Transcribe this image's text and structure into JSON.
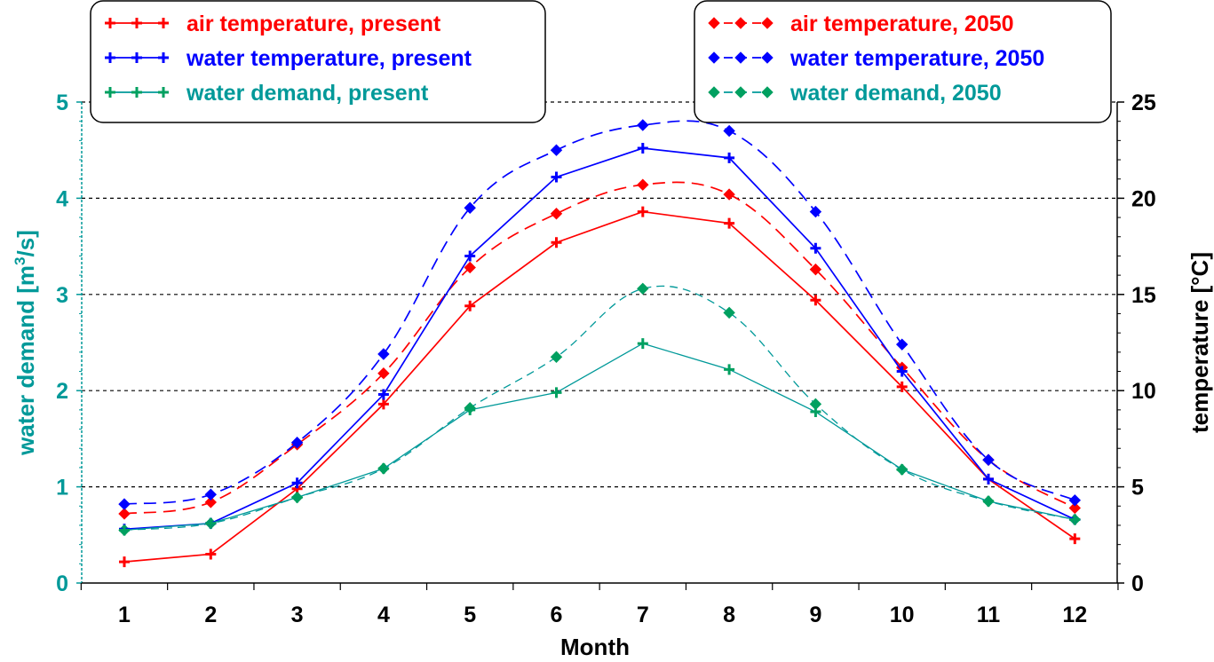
{
  "chart_data": {
    "type": "line",
    "xlabel": "Month",
    "ylabel_left": "water demand [m³/s]",
    "ylabel_left_main": "water demand [m",
    "ylabel_left_sup": "3",
    "ylabel_left_tail": "/s]",
    "ylabel_right": "temperature [°C]",
    "categories": [
      "1",
      "2",
      "3",
      "4",
      "5",
      "6",
      "7",
      "8",
      "9",
      "10",
      "11",
      "12"
    ],
    "ylim_left": [
      0,
      5
    ],
    "ylim_right": [
      0,
      25
    ],
    "yticks_left": [
      "0",
      "1",
      "2",
      "3",
      "4",
      "5"
    ],
    "yticks_right": [
      "0",
      "5",
      "10",
      "15",
      "20",
      "25"
    ],
    "grid": "horizontal dashed",
    "series": [
      {
        "name": "air temperature, present",
        "axis": "right",
        "color": "#ff0000",
        "marker": "plus",
        "style": "solid",
        "legend_group": "left",
        "values": [
          1.1,
          1.5,
          4.9,
          9.3,
          14.4,
          17.7,
          19.3,
          18.7,
          14.7,
          10.2,
          5.4,
          2.3
        ]
      },
      {
        "name": "water temperature, present",
        "axis": "right",
        "color": "#0000ff",
        "marker": "plus",
        "style": "solid",
        "legend_group": "left",
        "values": [
          2.8,
          3.1,
          5.2,
          9.8,
          17.0,
          21.1,
          22.6,
          22.1,
          17.4,
          11.0,
          5.4,
          3.3
        ]
      },
      {
        "name": "water demand, present",
        "axis": "left",
        "color": "#009999",
        "marker_color": "#00a060",
        "marker": "plus",
        "style": "solid",
        "legend_group": "left",
        "values": [
          0.55,
          0.62,
          0.89,
          1.19,
          1.8,
          1.98,
          2.49,
          2.22,
          1.78,
          1.18,
          0.85,
          0.66
        ]
      },
      {
        "name": "air temperature, 2050",
        "axis": "right",
        "color": "#ff0000",
        "marker": "diamond",
        "style": "dashed",
        "legend_group": "right",
        "values": [
          3.6,
          4.2,
          7.2,
          10.9,
          16.4,
          19.2,
          20.7,
          20.2,
          16.3,
          11.2,
          6.4,
          3.9
        ]
      },
      {
        "name": "water temperature, 2050",
        "axis": "right",
        "color": "#0000ff",
        "marker": "diamond",
        "style": "dashed",
        "legend_group": "right",
        "values": [
          4.1,
          4.6,
          7.3,
          11.9,
          19.5,
          22.5,
          23.8,
          23.5,
          19.3,
          12.4,
          6.4,
          4.3
        ]
      },
      {
        "name": "water demand, 2050",
        "axis": "left",
        "color": "#009999",
        "marker_color": "#00a060",
        "marker": "diamond",
        "style": "dashed",
        "legend_group": "right",
        "values": [
          0.55,
          0.62,
          0.89,
          1.19,
          1.82,
          2.35,
          3.06,
          2.81,
          1.86,
          1.18,
          0.85,
          0.66
        ]
      }
    ]
  },
  "colors": {
    "left_axis": "#009999",
    "right_axis": "#000000",
    "grid": "#000000"
  }
}
